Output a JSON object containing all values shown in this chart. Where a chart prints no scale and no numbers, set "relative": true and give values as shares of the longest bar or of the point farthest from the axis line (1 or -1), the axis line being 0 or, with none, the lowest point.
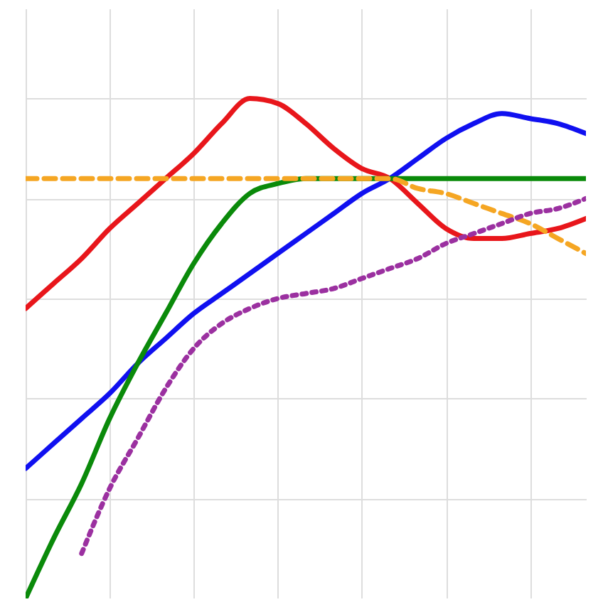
{
  "chart_data": {
    "type": "line",
    "relative": true,
    "grid": true,
    "categories": [
      null,
      null,
      null,
      null,
      null,
      null,
      null,
      null,
      null,
      null,
      null,
      null,
      null,
      null,
      null,
      null,
      null,
      null,
      null,
      null,
      null
    ],
    "series": [
      {
        "color": "#e8161b",
        "line_style": "solid",
        "values": [
          0.58,
          0.63,
          0.68,
          0.74,
          0.79,
          0.84,
          0.89,
          0.95,
          1.0,
          0.99,
          0.95,
          0.9,
          0.86,
          0.84,
          0.79,
          0.74,
          0.72,
          0.72,
          0.73,
          0.74,
          0.76
        ]
      },
      {
        "color": "#1010f0",
        "line_style": "solid",
        "values": [
          0.26,
          0.31,
          0.36,
          0.41,
          0.47,
          0.52,
          0.57,
          0.61,
          0.65,
          0.69,
          0.73,
          0.77,
          0.81,
          0.84,
          0.88,
          0.92,
          0.95,
          0.97,
          0.96,
          0.95,
          0.93
        ]
      },
      {
        "color": "#0a8a0a",
        "line_style": "solid",
        "values": [
          0.0,
          0.12,
          0.23,
          0.36,
          0.47,
          0.57,
          0.67,
          0.75,
          0.81,
          0.83,
          0.84,
          0.84,
          0.84,
          0.84,
          0.84,
          0.84,
          0.84,
          0.84,
          0.84,
          0.84,
          0.84
        ]
      },
      {
        "color": "#f5a623",
        "line_style": "dashed",
        "values": [
          0.84,
          0.84,
          0.84,
          0.84,
          0.84,
          0.84,
          0.84,
          0.84,
          0.84,
          0.84,
          0.84,
          0.84,
          0.84,
          0.84,
          0.82,
          0.81,
          0.79,
          0.77,
          0.75,
          0.72,
          0.69
        ]
      },
      {
        "color": "#9b30a0",
        "line_style": "dotted",
        "values": [
          null,
          null,
          0.09,
          0.22,
          0.32,
          0.42,
          0.5,
          0.55,
          0.58,
          0.6,
          0.61,
          0.62,
          0.64,
          0.66,
          0.68,
          0.71,
          0.73,
          0.75,
          0.77,
          0.78,
          0.8
        ]
      }
    ]
  }
}
